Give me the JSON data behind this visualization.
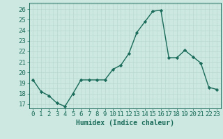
{
  "x": [
    0,
    1,
    2,
    3,
    4,
    5,
    6,
    7,
    8,
    9,
    10,
    11,
    12,
    13,
    14,
    15,
    16,
    17,
    18,
    19,
    20,
    21,
    22,
    23
  ],
  "y": [
    19.3,
    18.2,
    17.8,
    17.1,
    16.8,
    18.0,
    19.3,
    19.3,
    19.3,
    19.3,
    20.3,
    20.7,
    21.8,
    23.8,
    24.8,
    25.8,
    25.9,
    21.4,
    21.4,
    22.1,
    21.5,
    20.9,
    18.6,
    18.4
  ],
  "line_color": "#1a6b5a",
  "marker": "D",
  "markersize": 2.2,
  "linewidth": 1.0,
  "bg_color": "#cce8e0",
  "grid_major_color": "#b8d8d0",
  "grid_minor_color": "#d8eee8",
  "tick_color": "#1a6b5a",
  "label_color": "#1a6b5a",
  "xlabel": "Humidex (Indice chaleur)",
  "ylabel_ticks": [
    17,
    18,
    19,
    20,
    21,
    22,
    23,
    24,
    25,
    26
  ],
  "xlim": [
    -0.5,
    23.5
  ],
  "ylim": [
    16.6,
    26.6
  ],
  "xlabel_fontsize": 7,
  "tick_fontsize": 6.5
}
